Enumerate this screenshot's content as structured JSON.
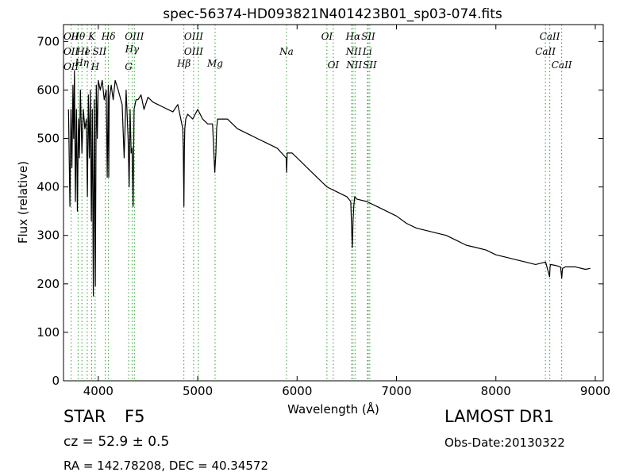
{
  "chart_data": {
    "type": "line",
    "title": "spec-56374-HD093821N401423B01_sp03-074.fits",
    "xlabel": "Wavelength (Å)",
    "ylabel": "Flux (relative)",
    "xlim": [
      3650,
      9080
    ],
    "ylim": [
      0,
      735
    ],
    "xticks": [
      4000,
      5000,
      6000,
      7000,
      8000,
      9000
    ],
    "yticks": [
      0,
      100,
      200,
      300,
      400,
      500,
      600,
      700
    ],
    "grid": false,
    "line_color": "#000000",
    "marker_color": "#2ca02c",
    "series": [
      {
        "x": [
          3700,
          3715,
          3725,
          3735,
          3745,
          3752,
          3760,
          3770,
          3780,
          3790,
          3800,
          3810,
          3820,
          3835,
          3850,
          3865,
          3880,
          3890,
          3900,
          3910,
          3920,
          3930,
          3940,
          3950,
          3960,
          3970,
          3980,
          3990,
          4000,
          4020,
          4040,
          4060,
          4080,
          4090,
          4100,
          4105,
          4110,
          4130,
          4150,
          4170,
          4200,
          4240,
          4260,
          4280,
          4300,
          4310,
          4320,
          4330,
          4340,
          4350,
          4360,
          4380,
          4400,
          4430,
          4460,
          4500,
          4550,
          4600,
          4650,
          4700,
          4750,
          4800,
          4830,
          4850,
          4855,
          4861,
          4866,
          4870,
          4880,
          4900,
          4950,
          5000,
          5050,
          5100,
          5150,
          5167,
          5172,
          5183,
          5190,
          5200,
          5300,
          5400,
          5500,
          5600,
          5700,
          5800,
          5890,
          5895,
          5900,
          5950,
          6000,
          6100,
          6200,
          6300,
          6400,
          6500,
          6540,
          6555,
          6563,
          6570,
          6580,
          6600,
          6700,
          6800,
          6900,
          7000,
          7100,
          7200,
          7300,
          7400,
          7500,
          7600,
          7700,
          7800,
          7900,
          8000,
          8100,
          8200,
          8300,
          8400,
          8500,
          8540,
          8545,
          8550,
          8600,
          8650,
          8662,
          8670,
          8700,
          8800,
          8900,
          8950
        ],
        "values": [
          560,
          360,
          560,
          440,
          610,
          500,
          640,
          370,
          560,
          350,
          540,
          460,
          600,
          470,
          560,
          520,
          540,
          380,
          590,
          460,
          600,
          330,
          560,
          175,
          580,
          195,
          610,
          500,
          620,
          600,
          620,
          580,
          600,
          420,
          610,
          420,
          580,
          610,
          580,
          620,
          600,
          570,
          460,
          600,
          500,
          400,
          560,
          470,
          480,
          360,
          560,
          580,
          580,
          590,
          560,
          585,
          575,
          570,
          565,
          560,
          555,
          570,
          540,
          520,
          480,
          360,
          480,
          520,
          540,
          550,
          540,
          560,
          540,
          530,
          530,
          450,
          430,
          470,
          520,
          540,
          540,
          520,
          510,
          500,
          490,
          480,
          460,
          430,
          470,
          470,
          460,
          440,
          420,
          400,
          390,
          380,
          370,
          275,
          330,
          360,
          380,
          375,
          370,
          360,
          350,
          340,
          325,
          315,
          310,
          305,
          300,
          290,
          280,
          275,
          270,
          260,
          255,
          250,
          245,
          240,
          245,
          215,
          235,
          240,
          238,
          235,
          212,
          232,
          235,
          235,
          230,
          232
        ]
      }
    ],
    "lines": [
      {
        "name": "OII",
        "x": 3727
      },
      {
        "name": "Hθ",
        "x": 3797
      },
      {
        "name": "Hη",
        "x": 3835
      },
      {
        "name": "HeI",
        "x": 3889
      },
      {
        "name": "K",
        "x": 3934
      },
      {
        "name": "H",
        "x": 3968
      },
      {
        "name": "SII",
        "x": 4070
      },
      {
        "name": "Hδ",
        "x": 4102
      },
      {
        "name": "G",
        "x": 4305
      },
      {
        "name": "Hγ",
        "x": 4340
      },
      {
        "name": "OIII",
        "x": 4363
      },
      {
        "name": "Hβ",
        "x": 4861
      },
      {
        "name": "OIII",
        "x": 4959
      },
      {
        "name": "OIII",
        "x": 5007
      },
      {
        "name": "Mg",
        "x": 5175
      },
      {
        "name": "Na",
        "x": 5893
      },
      {
        "name": "OI",
        "x": 6300
      },
      {
        "name": "OI",
        "x": 6364
      },
      {
        "name": "NII",
        "x": 6548
      },
      {
        "name": "Hα",
        "x": 6563
      },
      {
        "name": "NII",
        "x": 6583
      },
      {
        "name": "Li",
        "x": 6707
      },
      {
        "name": "SII",
        "x": 6716
      },
      {
        "name": "SII",
        "x": 6731
      },
      {
        "name": "CaII",
        "x": 8498
      },
      {
        "name": "CaII",
        "x": 8542
      },
      {
        "name": "CaII",
        "x": 8662
      }
    ],
    "line_labels": [
      {
        "text": "OII",
        "x": 3727,
        "y": 46
      },
      {
        "text": "OII",
        "x": 3727,
        "y": 65
      },
      {
        "text": "OII",
        "x": 3727,
        "y": 84
      },
      {
        "text": "Hθ",
        "x": 3797,
        "y": 46
      },
      {
        "text": "Hη",
        "x": 3835,
        "y": 79
      },
      {
        "text": "He",
        "x": 3850,
        "y": 65
      },
      {
        "text": "I",
        "x": 3884,
        "y": 65
      },
      {
        "text": "K",
        "x": 3934,
        "y": 46
      },
      {
        "text": "SII",
        "x": 4012,
        "y": 65
      },
      {
        "text": "H",
        "x": 3968,
        "y": 84
      },
      {
        "text": "Hδ",
        "x": 4102,
        "y": 46
      },
      {
        "text": "OIII",
        "x": 4363,
        "y": 46
      },
      {
        "text": "Hγ",
        "x": 4340,
        "y": 62
      },
      {
        "text": "G",
        "x": 4305,
        "y": 84
      },
      {
        "text": "OIII",
        "x": 4959,
        "y": 46
      },
      {
        "text": "OIII",
        "x": 4959,
        "y": 65
      },
      {
        "text": "Hβ",
        "x": 4861,
        "y": 80
      },
      {
        "text": "Mg",
        "x": 5175,
        "y": 80
      },
      {
        "text": "Na",
        "x": 5893,
        "y": 65
      },
      {
        "text": "OI",
        "x": 6300,
        "y": 46
      },
      {
        "text": "OI",
        "x": 6364,
        "y": 82
      },
      {
        "text": "Hα",
        "x": 6563,
        "y": 46
      },
      {
        "text": "SII",
        "x": 6716,
        "y": 46
      },
      {
        "text": "NII",
        "x": 6570,
        "y": 65
      },
      {
        "text": "Li",
        "x": 6707,
        "y": 65
      },
      {
        "text": "NII",
        "x": 6575,
        "y": 82
      },
      {
        "text": "SII",
        "x": 6731,
        "y": 82
      },
      {
        "text": "CaII",
        "x": 8542,
        "y": 46
      },
      {
        "text": "CaII",
        "x": 8498,
        "y": 65
      },
      {
        "text": "CaII",
        "x": 8662,
        "y": 82
      }
    ]
  },
  "info": {
    "object_type": "STAR",
    "subclass": "F5",
    "survey": "LAMOST DR1",
    "redshift": "cz = 52.9 ± 0.5",
    "obs_date": "Obs-Date:20130322",
    "coords": "RA = 142.78208, DEC = 40.34572"
  }
}
